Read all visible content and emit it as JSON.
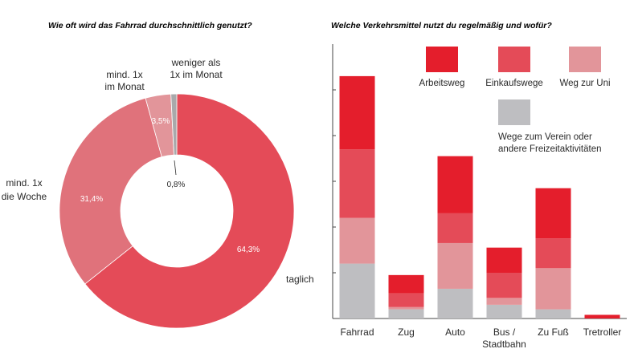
{
  "chart_data": [
    {
      "type": "pie",
      "title": "Wie oft wird das Fahrrad durchschnittlich genutzt?",
      "slices": [
        {
          "label": "taglich",
          "value": 64.3,
          "value_label": "64,3%",
          "color": "#e44b58"
        },
        {
          "label_lines": [
            "mind. 1x",
            "die Woche"
          ],
          "value": 31.4,
          "value_label": "31,4%",
          "color": "#e0727b"
        },
        {
          "label_lines": [
            "mind. 1x",
            "im Monat"
          ],
          "value": 3.5,
          "value_label": "3,5%",
          "color": "#e2959a"
        },
        {
          "label_lines": [
            "weniger als",
            "1x im Monat"
          ],
          "value": 0.8,
          "value_label": "0,8%",
          "color": "#a9a9ab"
        }
      ]
    },
    {
      "type": "bar",
      "stacked": true,
      "title": "Welche Verkehrsmittel nutzt du regelmäßig und wofür?",
      "categories": [
        "Fahrrad",
        "Zug",
        "Auto",
        "Bus / Stadtbahn",
        "Zu Fuß",
        "Tretroller"
      ],
      "category_lines": [
        [
          "Fahrrad"
        ],
        [
          "Zug"
        ],
        [
          "Auto"
        ],
        [
          "Bus /",
          "Stadtbahn"
        ],
        [
          "Zu Fuß"
        ],
        [
          "Tretroller"
        ]
      ],
      "series": [
        {
          "name": "Wege zum Verein oder andere Freizeitaktivitäten",
          "name_lines": [
            "Wege zum Verein oder",
            "andere Freizeitaktivitäten"
          ],
          "color": "#bebec1",
          "values": [
            12,
            2,
            6.5,
            3,
            2,
            0
          ]
        },
        {
          "name": "Weg zur Uni",
          "name_lines": [
            "Weg zur Uni"
          ],
          "color": "#e2959a",
          "values": [
            10,
            0.5,
            10,
            1.5,
            9,
            0
          ]
        },
        {
          "name": "Einkaufswege",
          "name_lines": [
            "Einkaufswege"
          ],
          "color": "#e44b58",
          "values": [
            15,
            3,
            6.5,
            5.5,
            6.5,
            0
          ]
        },
        {
          "name": "Arbeitsweg",
          "name_lines": [
            "Arbeitsweg"
          ],
          "color": "#e41e2c",
          "values": [
            16,
            4,
            12.5,
            5.5,
            11,
            0.8
          ]
        }
      ],
      "ylim": [
        0,
        60
      ],
      "grid": false
    }
  ]
}
